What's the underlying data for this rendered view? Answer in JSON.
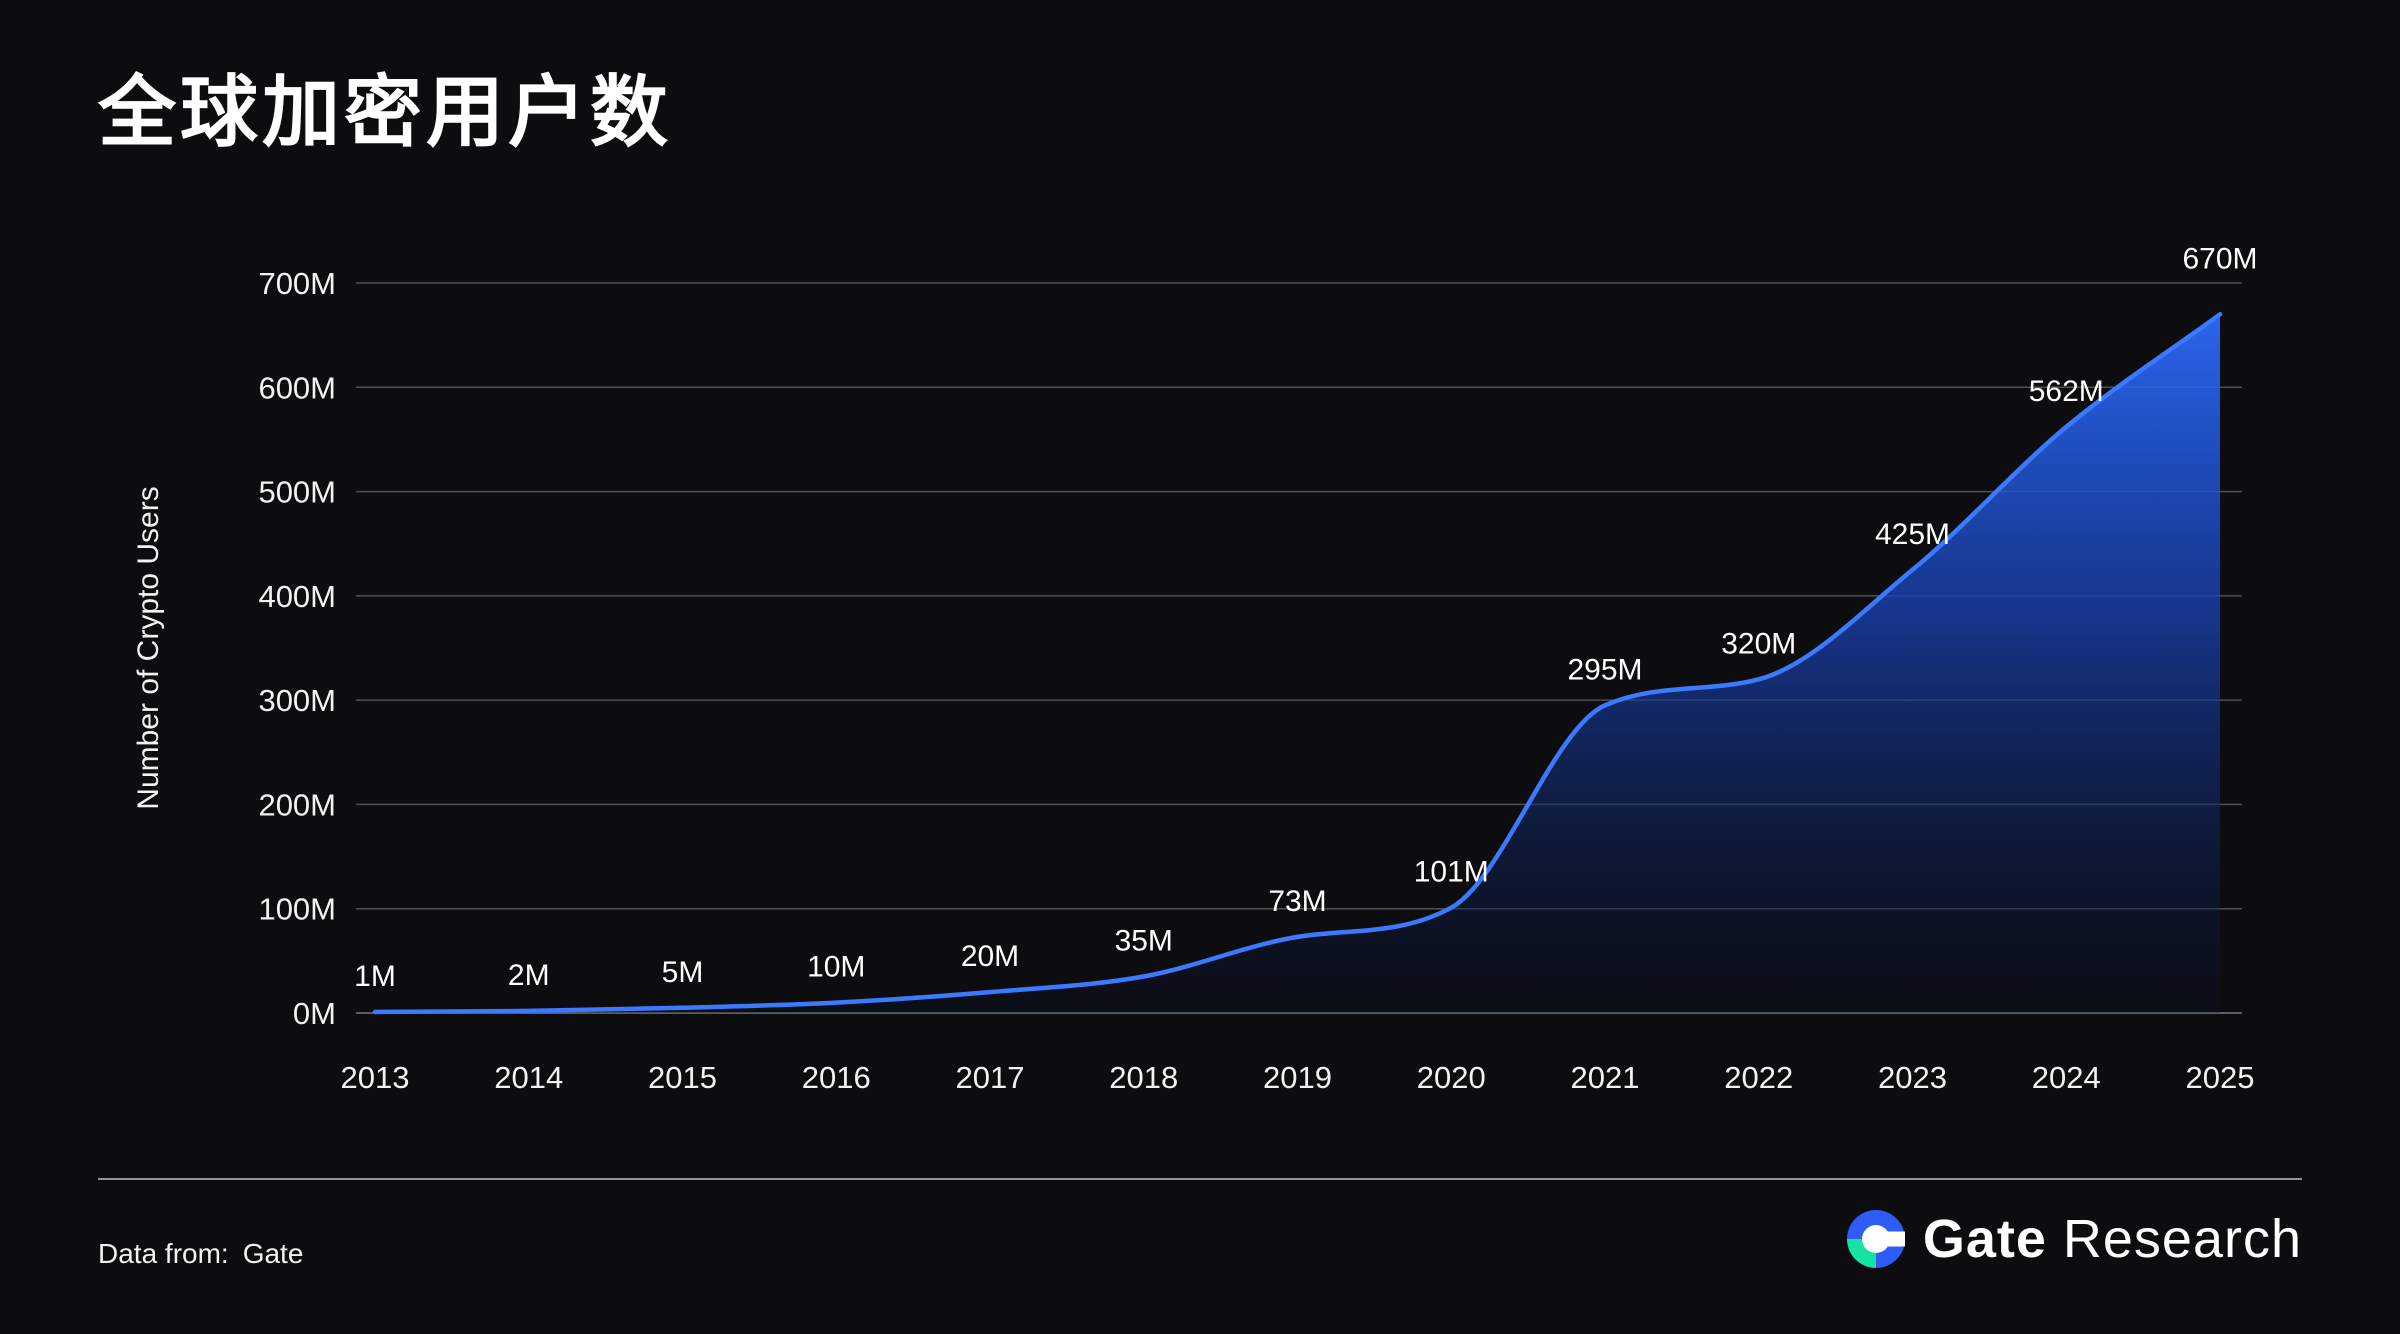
{
  "title": "全球加密用户数",
  "footer": {
    "data_from_label": "Data from:",
    "data_from_value": "Gate"
  },
  "brand": {
    "bold": "Gate",
    "regular": "Research"
  },
  "colors": {
    "background": "#0d0d0f",
    "line": "#3b79ff",
    "area_top": "#2d6eff",
    "area_mid": "#1a46bf",
    "area_bottom": "#081028",
    "grid": "#ffffff",
    "text": "#f2f2f2",
    "logo_blue": "#2d5cf6",
    "logo_green": "#16e2a4"
  },
  "chart_data": {
    "type": "area",
    "title": "全球加密用户数",
    "ylabel": "Number of Crypto Users",
    "xlabel": "",
    "categories": [
      "2013",
      "2014",
      "2015",
      "2016",
      "2017",
      "2018",
      "2019",
      "2020",
      "2021",
      "2022",
      "2023",
      "2024",
      "2025"
    ],
    "values": [
      1,
      2,
      5,
      10,
      20,
      35,
      73,
      101,
      295,
      320,
      425,
      562,
      670
    ],
    "point_labels": [
      "1M",
      "2M",
      "5M",
      "10M",
      "20M",
      "35M",
      "73M",
      "101M",
      "295M",
      "320M",
      "425M",
      "562M",
      "670M"
    ],
    "ytick_values": [
      0,
      100,
      200,
      300,
      400,
      500,
      600,
      700
    ],
    "ytick_labels": [
      "0M",
      "100M",
      "200M",
      "300M",
      "400M",
      "500M",
      "600M",
      "700M"
    ],
    "ylim": [
      0,
      700
    ],
    "grid": true,
    "legend": false
  }
}
